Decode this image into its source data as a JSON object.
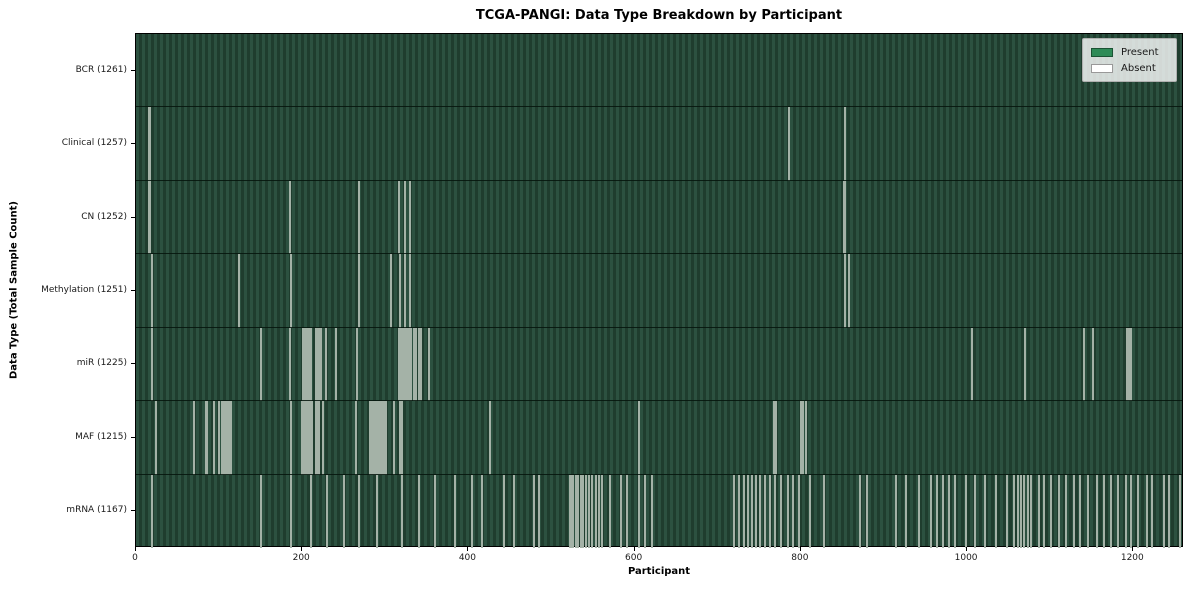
{
  "figure": {
    "title": "TCGA-PANGI: Data Type Breakdown by Participant"
  },
  "chart_data": {
    "type": "heatmap",
    "title": "TCGA-PANGI: Data Type Breakdown by Participant",
    "xlabel": "Participant",
    "ylabel": "Data Type (Total Sample Count)",
    "x_ticks": [
      0,
      200,
      400,
      600,
      800,
      1000,
      1200
    ],
    "x_range": [
      0,
      1261
    ],
    "total_participants": 1261,
    "grid": false,
    "legend": {
      "position": "upper right",
      "entries": [
        {
          "label": "Present",
          "color": "#2e8b57"
        },
        {
          "label": "Absent",
          "color": "#ffffff"
        }
      ]
    },
    "rows": [
      {
        "label": "BCR (1261)",
        "data_type": "BCR",
        "sample_count": 1261,
        "absent_participants": []
      },
      {
        "label": "Clinical (1257)",
        "data_type": "Clinical",
        "sample_count": 1257,
        "absent_participants": [
          16,
          17,
          786,
          853
        ]
      },
      {
        "label": "CN (1252)",
        "data_type": "CN",
        "sample_count": 1252,
        "absent_participants": [
          16,
          17,
          185,
          268,
          317,
          324,
          330,
          852,
          853
        ]
      },
      {
        "label": "Methylation (1251)",
        "data_type": "Methylation",
        "sample_count": 1251,
        "absent_participants": [
          19,
          124,
          186,
          268,
          307,
          318,
          324,
          330,
          853,
          858
        ]
      },
      {
        "label": "miR (1225)",
        "data_type": "miR",
        "sample_count": 1225,
        "absent_participants": [
          19,
          150,
          185,
          201,
          203,
          205,
          207,
          209,
          211,
          217,
          219,
          221,
          223,
          229,
          241,
          266,
          317,
          319,
          321,
          323,
          325,
          327,
          329,
          331,
          334,
          337,
          340,
          343,
          353,
          1006,
          1070,
          1141,
          1152,
          1193,
          1195,
          1197
        ]
      },
      {
        "label": "MAF (1215)",
        "data_type": "MAF",
        "sample_count": 1215,
        "absent_participants": [
          24,
          70,
          84,
          86,
          94,
          100,
          104,
          106,
          108,
          110,
          112,
          114,
          187,
          200,
          202,
          204,
          206,
          208,
          210,
          212,
          216,
          218,
          220,
          225,
          265,
          281,
          283,
          285,
          287,
          289,
          291,
          293,
          295,
          297,
          299,
          301,
          310,
          318,
          320,
          426,
          605,
          768,
          770,
          800,
          802,
          806
        ]
      },
      {
        "label": "mRNA (1167)",
        "data_type": "mRNA",
        "sample_count": 1167,
        "absent_participants": [
          19,
          150,
          186,
          210,
          230,
          250,
          268,
          290,
          320,
          340,
          360,
          384,
          404,
          416,
          443,
          455,
          479,
          485,
          522,
          524,
          526,
          529,
          532,
          535,
          538,
          541,
          545,
          549,
          553,
          557,
          561,
          570,
          583,
          591,
          605,
          613,
          621,
          720,
          726,
          731,
          736,
          741,
          746,
          751,
          757,
          763,
          769,
          776,
          784,
          791,
          798,
          811,
          828,
          871,
          880,
          914,
          926,
          942,
          957,
          964,
          971,
          978,
          986,
          999,
          1010,
          1022,
          1035,
          1048,
          1057,
          1061,
          1065,
          1069,
          1073,
          1077,
          1086,
          1093,
          1101,
          1110,
          1119,
          1129,
          1136,
          1146,
          1156,
          1165,
          1173,
          1181,
          1191,
          1197,
          1206,
          1216,
          1223,
          1237,
          1243,
          1256
        ]
      }
    ],
    "colors": {
      "present": "#2e8b57",
      "absent": "#ffffff",
      "bar_stripe_light": "#2c5140",
      "bar_stripe_dark": "#1f3d2e",
      "absent_line": "#a4b2a7",
      "axis_text": "#1a1a1a"
    }
  }
}
